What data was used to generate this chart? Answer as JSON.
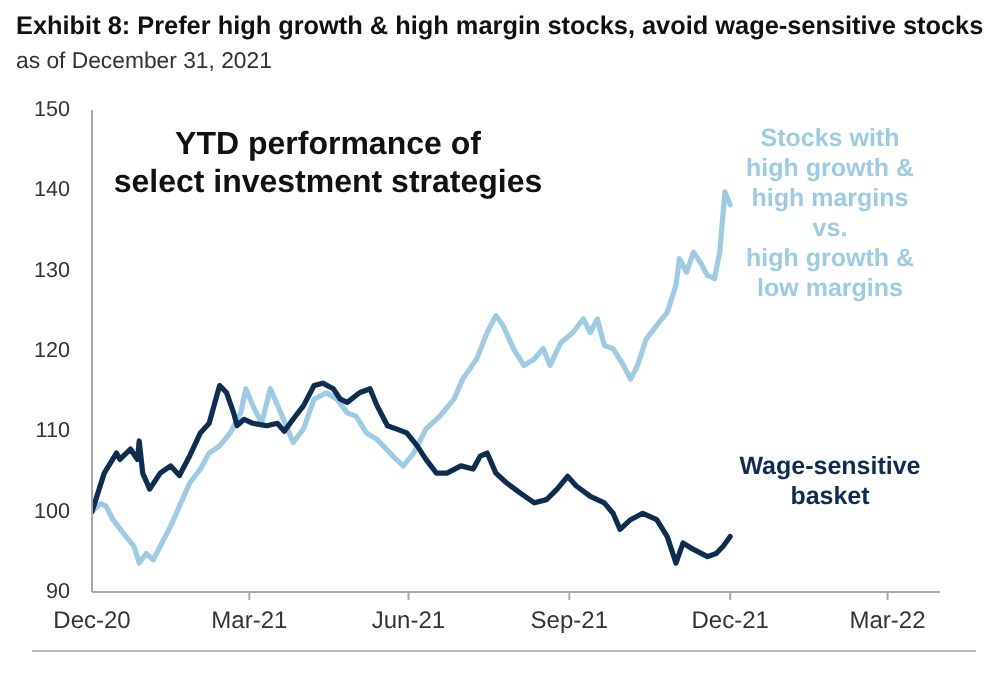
{
  "chart_data": {
    "type": "line",
    "title": "Exhibit 8: Prefer high growth & high margin stocks, avoid wage-sensitive stocks",
    "subtitle": "as of December 31, 2021",
    "annotations": [
      "YTD performance of\nselect investment strategies"
    ],
    "series": [
      {
        "name": "Stocks with\nhigh growth &\nhigh margins\nvs.\nhigh growth &\nlow margins",
        "color": "#9ecbe3",
        "x": [
          "2020-12-31",
          "2021-01-05",
          "2021-01-08",
          "2021-01-12",
          "2021-01-18",
          "2021-01-24",
          "2021-01-27",
          "2021-01-31",
          "2021-02-04",
          "2021-02-08",
          "2021-02-14",
          "2021-02-19",
          "2021-02-25",
          "2021-03-03",
          "2021-03-08",
          "2021-03-14",
          "2021-03-20",
          "2021-03-26",
          "2021-03-29",
          "2021-04-02",
          "2021-04-07",
          "2021-04-12",
          "2021-04-18",
          "2021-04-25",
          "2021-05-01",
          "2021-05-07",
          "2021-05-14",
          "2021-05-20",
          "2021-05-26",
          "2021-05-31",
          "2021-06-06",
          "2021-06-12",
          "2021-06-23",
          "2021-06-27",
          "2021-07-03",
          "2021-07-10",
          "2021-07-18",
          "2021-07-26",
          "2021-07-31",
          "2021-08-08",
          "2021-08-14",
          "2021-08-19",
          "2021-08-23",
          "2021-08-29",
          "2021-09-04",
          "2021-09-10",
          "2021-09-15",
          "2021-09-19",
          "2021-09-25",
          "2021-10-02",
          "2021-10-08",
          "2021-10-12",
          "2021-10-16",
          "2021-10-20",
          "2021-10-25",
          "2021-10-31",
          "2021-11-04",
          "2021-11-08",
          "2021-11-13",
          "2021-11-19",
          "2021-11-25",
          "2021-11-30",
          "2021-12-02",
          "2021-12-06",
          "2021-12-10",
          "2021-12-14",
          "2021-12-18",
          "2021-12-22",
          "2021-12-25",
          "2021-12-28",
          "2021-12-31"
        ],
        "values": [
          100,
          101,
          100.7,
          99,
          97.3,
          95.7,
          93.6,
          94.8,
          94,
          95.7,
          98.2,
          100.7,
          103.6,
          105.3,
          107.3,
          108.2,
          109.8,
          112.3,
          115.3,
          113.2,
          111,
          115.3,
          112.3,
          108.6,
          110.3,
          114,
          114.8,
          114,
          112.3,
          111.9,
          109.8,
          109,
          106.5,
          105.7,
          107.3,
          110.3,
          111.9,
          114,
          116.5,
          119,
          122.3,
          124.4,
          123.2,
          120.3,
          118.2,
          119,
          120.3,
          118.2,
          121,
          122.3,
          124,
          122.3,
          124,
          120.7,
          120.3,
          118.2,
          116.5,
          118.2,
          121.5,
          123.2,
          124.8,
          128.2,
          131.5,
          129.8,
          132.3,
          131,
          129.4,
          129,
          132.3,
          139.8,
          138.2
        ]
      },
      {
        "name": "Wage-sensitive\nbasket",
        "color": "#0e2d50",
        "x": [
          "2020-12-31",
          "2021-01-07",
          "2021-01-14",
          "2021-01-16",
          "2021-01-22",
          "2021-01-26",
          "2021-01-27",
          "2021-01-29",
          "2021-02-02",
          "2021-02-08",
          "2021-02-14",
          "2021-02-19",
          "2021-02-25",
          "2021-03-03",
          "2021-03-08",
          "2021-03-14",
          "2021-03-18",
          "2021-03-22",
          "2021-03-24",
          "2021-03-28",
          "2021-04-02",
          "2021-04-10",
          "2021-04-16",
          "2021-04-20",
          "2021-04-25",
          "2021-05-01",
          "2021-05-07",
          "2021-05-12",
          "2021-05-18",
          "2021-05-22",
          "2021-05-26",
          "2021-06-02",
          "2021-06-08",
          "2021-06-12",
          "2021-06-18",
          "2021-06-23",
          "2021-06-29",
          "2021-07-05",
          "2021-07-10",
          "2021-07-16",
          "2021-07-22",
          "2021-07-30",
          "2021-08-06",
          "2021-08-10",
          "2021-08-14",
          "2021-08-19",
          "2021-08-25",
          "2021-09-02",
          "2021-09-10",
          "2021-09-17",
          "2021-09-23",
          "2021-09-29",
          "2021-10-04",
          "2021-10-12",
          "2021-10-20",
          "2021-10-25",
          "2021-10-29",
          "2021-11-04",
          "2021-11-11",
          "2021-11-19",
          "2021-11-25",
          "2021-11-30",
          "2021-12-04",
          "2021-12-10",
          "2021-12-18",
          "2021-12-23",
          "2021-12-27",
          "2021-12-31"
        ],
        "values": [
          100,
          104.8,
          107.3,
          106.5,
          107.8,
          106.5,
          108.8,
          104.8,
          102.8,
          104.8,
          105.7,
          104.5,
          107,
          109.8,
          111,
          115.7,
          114.8,
          112.3,
          110.7,
          111.5,
          111,
          110.7,
          111,
          110,
          111.5,
          113.2,
          115.7,
          116,
          115.3,
          114,
          113.6,
          114.8,
          115.3,
          113.2,
          110.7,
          110.3,
          109.8,
          108.2,
          106.5,
          104.8,
          104.8,
          105.7,
          105.3,
          106.9,
          107.3,
          104.8,
          103.6,
          102.3,
          101.1,
          101.5,
          102.8,
          104.4,
          103.2,
          101.9,
          101.1,
          99.8,
          97.8,
          99,
          99.8,
          99,
          96.9,
          93.6,
          96.1,
          95.3,
          94.4,
          94.8,
          95.7,
          96.9
        ]
      }
    ],
    "xlim": [
      "2020-12-31",
      "2022-04-30"
    ],
    "xticks": [
      {
        "value": "2020-12-31",
        "label": "Dec-20"
      },
      {
        "value": "2021-03-31",
        "label": "Mar-21"
      },
      {
        "value": "2021-06-30",
        "label": "Jun-21"
      },
      {
        "value": "2021-09-30",
        "label": "Sep-21"
      },
      {
        "value": "2021-12-31",
        "label": "Dec-21"
      },
      {
        "value": "2022-03-31",
        "label": "Mar-22"
      }
    ],
    "ylim": [
      90,
      150
    ],
    "yticks": [
      90,
      100,
      110,
      120,
      130,
      140,
      150
    ]
  }
}
